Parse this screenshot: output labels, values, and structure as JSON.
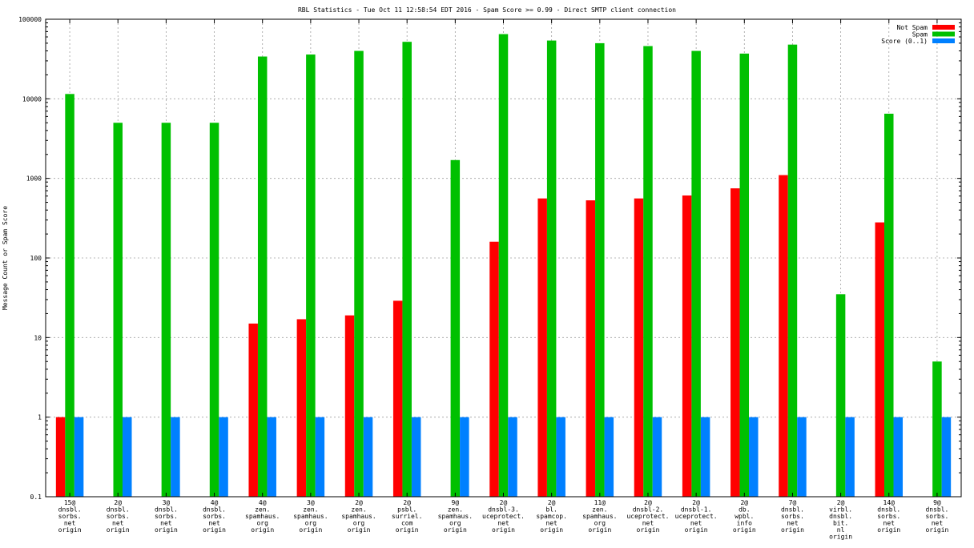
{
  "chart_data": {
    "type": "bar",
    "title": "RBL Statistics - Tue Oct 11 12:58:54 EDT 2016 - Spam Score >= 0.99 - Direct SMTP client connection",
    "xlabel": "",
    "ylabel": "Message Count or Spam Score",
    "yscale": "log",
    "ylim": [
      0.1,
      100000
    ],
    "y_ticks": [
      {
        "value": 0.1,
        "label": "0.1"
      },
      {
        "value": 1,
        "label": "1"
      },
      {
        "value": 10,
        "label": "10"
      },
      {
        "value": 100,
        "label": "100"
      },
      {
        "value": 1000,
        "label": "1000"
      },
      {
        "value": 10000,
        "label": "10000"
      },
      {
        "value": 100000,
        "label": "100000"
      }
    ],
    "grid": true,
    "legend_position": "top-right",
    "categories": [
      [
        "15@",
        "dnsbl.",
        "sorbs.",
        "net",
        "origin"
      ],
      [
        "2@",
        "dnsbl.",
        "sorbs.",
        "net",
        "origin"
      ],
      [
        "3@",
        "dnsbl.",
        "sorbs.",
        "net",
        "origin"
      ],
      [
        "4@",
        "dnsbl.",
        "sorbs.",
        "net",
        "origin"
      ],
      [
        "4@",
        "zen.",
        "spamhaus.",
        "org",
        "origin"
      ],
      [
        "3@",
        "zen.",
        "spamhaus.",
        "org",
        "origin"
      ],
      [
        "2@",
        "zen.",
        "spamhaus.",
        "org",
        "origin"
      ],
      [
        "2@",
        "psbl.",
        "surriel.",
        "com",
        "origin"
      ],
      [
        "9@",
        "zen.",
        "spamhaus.",
        "org",
        "origin"
      ],
      [
        "2@",
        "dnsbl-3.",
        "uceprotect.",
        "net",
        "origin"
      ],
      [
        "2@",
        "bl.",
        "spamcop.",
        "net",
        "origin"
      ],
      [
        "11@",
        "zen.",
        "spamhaus.",
        "org",
        "origin"
      ],
      [
        "2@",
        "dnsbl-2.",
        "uceprotect.",
        "net",
        "origin"
      ],
      [
        "2@",
        "dnsbl-1.",
        "uceprotect.",
        "net",
        "origin"
      ],
      [
        "2@",
        "db.",
        "wpbl.",
        "info",
        "origin"
      ],
      [
        "7@",
        "dnsbl.",
        "sorbs.",
        "net",
        "origin"
      ],
      [
        "2@",
        "virbl.",
        "dnsbl.",
        "bit.",
        "nl",
        "origin"
      ],
      [
        "14@",
        "dnsbl.",
        "sorbs.",
        "net",
        "origin"
      ],
      [
        "9@",
        "dnsbl.",
        "sorbs.",
        "net",
        "origin"
      ]
    ],
    "series": [
      {
        "name": "Not Spam",
        "color": "#ff0000",
        "values": [
          1,
          null,
          null,
          null,
          15,
          17,
          19,
          29,
          null,
          160,
          560,
          530,
          560,
          610,
          750,
          1100,
          null,
          280,
          null
        ]
      },
      {
        "name": "Spam",
        "color": "#00c000",
        "values": [
          11500,
          5000,
          5000,
          5000,
          34000,
          36000,
          40000,
          52000,
          1700,
          65000,
          54000,
          50000,
          46000,
          40000,
          37000,
          48000,
          35,
          6500,
          5
        ]
      },
      {
        "name": "Score (0..1)",
        "color": "#0080ff",
        "values": [
          1,
          1,
          1,
          1,
          1,
          1,
          1,
          1,
          1,
          1,
          1,
          1,
          1,
          1,
          1,
          1,
          1,
          1,
          1
        ]
      }
    ]
  }
}
